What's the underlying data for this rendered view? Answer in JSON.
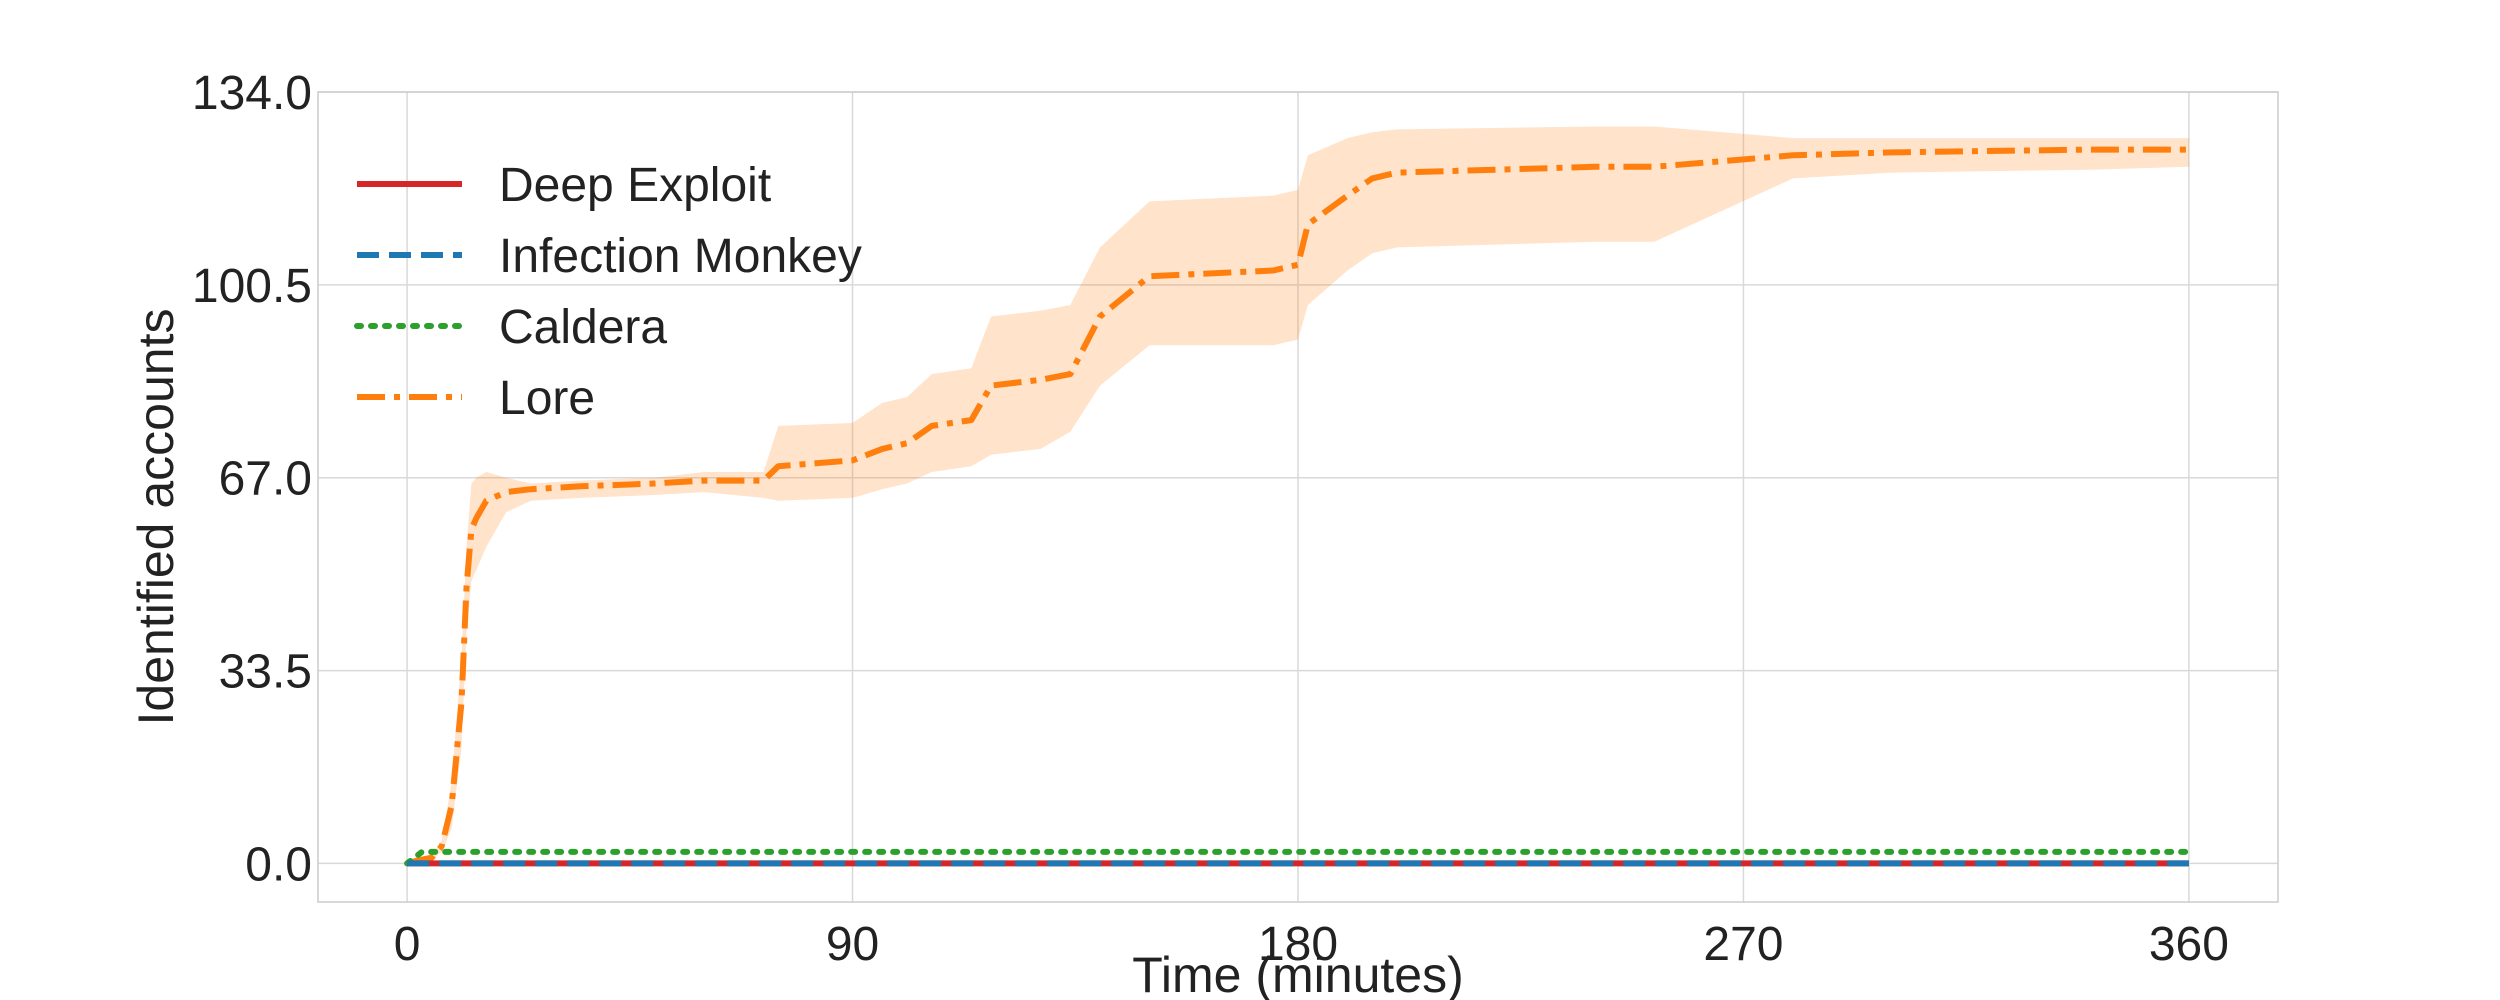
{
  "chart_data": {
    "type": "line",
    "xlabel": "Time (minutes)",
    "ylabel": "Identified accounts",
    "xlim": [
      -18,
      378
    ],
    "ylim": [
      -6.7,
      134.0
    ],
    "xticks": [
      0,
      90,
      180,
      270,
      360
    ],
    "xtick_labels": [
      "0",
      "90",
      "180",
      "270",
      "360"
    ],
    "yticks": [
      0.0,
      33.5,
      67.0,
      100.5,
      134.0
    ],
    "ytick_labels": [
      "0.0",
      "33.5",
      "67.0",
      "100.5",
      "134.0"
    ],
    "grid": true,
    "legend_position": "top-left",
    "series": [
      {
        "name": "Deep Exploit",
        "color": "#d62728",
        "dash": "solid",
        "x": [
          0,
          360
        ],
        "y": [
          0,
          0
        ]
      },
      {
        "name": "Infection Monkey",
        "color": "#1f77b4",
        "dash": "dashed",
        "x": [
          0,
          360
        ],
        "y": [
          0,
          0
        ]
      },
      {
        "name": "Caldera",
        "color": "#2ca02c",
        "dash": "dotted",
        "x": [
          0,
          3,
          360
        ],
        "y": [
          0,
          2,
          2
        ]
      },
      {
        "name": "Lore",
        "color": "#ff7f0e",
        "dash": "dashdot",
        "x": [
          0,
          2,
          5,
          7,
          9,
          11,
          12,
          13,
          14,
          16,
          20,
          25,
          35,
          50,
          60,
          72,
          75,
          90,
          96,
          101,
          106,
          114,
          118,
          128,
          134,
          140,
          150,
          175,
          180,
          182,
          190,
          195,
          200,
          240,
          252,
          280,
          300,
          340,
          360
        ],
        "y": [
          0,
          0.5,
          1,
          3,
          10,
          28,
          48,
          58,
          60,
          63,
          64.5,
          65,
          65.5,
          66,
          66.5,
          66.5,
          69,
          70,
          72,
          73,
          76,
          77,
          83,
          84,
          85,
          95,
          102,
          103,
          104,
          111,
          116,
          119,
          120,
          121,
          121,
          123,
          123.5,
          124,
          124
        ],
        "lower": [
          0,
          0.3,
          0.6,
          2,
          6,
          20,
          40,
          49,
          51,
          55,
          61,
          63,
          63.5,
          64,
          64.5,
          63.5,
          63,
          63.5,
          65,
          66,
          68,
          69,
          71,
          72,
          75,
          83,
          90,
          90,
          91,
          97,
          103,
          106,
          107,
          108,
          108,
          119,
          120,
          120.5,
          121
        ],
        "upper": [
          0,
          0.8,
          1.4,
          4,
          14,
          36,
          55,
          66,
          67,
          68,
          67,
          66,
          66.5,
          67,
          68,
          68,
          76,
          76.5,
          80,
          81,
          85,
          86,
          95,
          96,
          97,
          107,
          115,
          116,
          117,
          123,
          126,
          127,
          127.5,
          128,
          128,
          126,
          126,
          126,
          126
        ]
      }
    ]
  }
}
